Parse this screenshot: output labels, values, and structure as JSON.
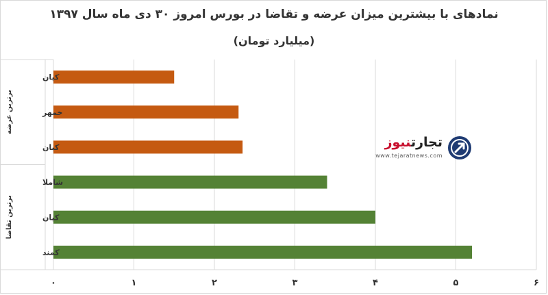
{
  "chart_data": {
    "type": "bar",
    "orientation": "horizontal",
    "title": "نمادهای با بیشترین میزان عرضه و تقاضا در بورس امروز ۳۰ دی ماه سال ۱۳۹۷",
    "subtitle": "(میلیارد تومان)",
    "xlim": [
      0,
      6
    ],
    "x_ticks": [
      "۰",
      "۱",
      "۲",
      "۳",
      "۴",
      "۵",
      "۶"
    ],
    "grid": true,
    "groups": [
      {
        "label": "برترین عرضه",
        "color": "#c55a11",
        "categories": [
          "کیان",
          "خمهر",
          "کیان"
        ],
        "values": [
          1.5,
          2.3,
          2.35
        ]
      },
      {
        "label": "برترین تقاضا",
        "color": "#548235",
        "categories": [
          "شاملا",
          "کیان",
          "کمند"
        ],
        "values": [
          3.4,
          4.0,
          5.2
        ]
      }
    ]
  },
  "watermark": {
    "brand_part1": "تجارت",
    "brand_part2": "نیوز",
    "url": "www.tejaratnews.com",
    "logo_color": "#1f3b73"
  }
}
